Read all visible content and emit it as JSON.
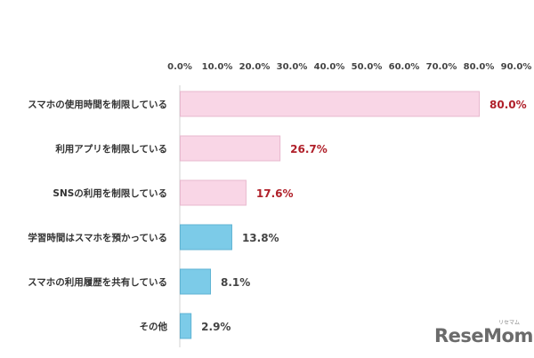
{
  "chart_data": {
    "type": "bar",
    "orientation": "horizontal",
    "categories": [
      "スマホの使用時間を制限している",
      "利用アプリを制限している",
      "SNSの利用を制限している",
      "学習時間はスマホを預かっている",
      "スマホの利用履歴を共有している",
      "その他"
    ],
    "values": [
      80.0,
      26.7,
      17.6,
      13.8,
      8.1,
      2.9
    ],
    "value_labels": [
      "80.0%",
      "26.7%",
      "17.6%",
      "13.8%",
      "8.1%",
      "2.9%"
    ],
    "bar_colors": [
      "#f9d6e6",
      "#f9d6e6",
      "#f9d6e6",
      "#7ccbe8",
      "#7ccbe8",
      "#7ccbe8"
    ],
    "bar_border_colors": [
      "#e8b8ce",
      "#e8b8ce",
      "#e8b8ce",
      "#5fb3d3",
      "#5fb3d3",
      "#5fb3d3"
    ],
    "label_colors": [
      "#b0202a",
      "#b0202a",
      "#b0202a",
      "#444444",
      "#444444",
      "#444444"
    ],
    "x_ticks": [
      "0.0%",
      "10.0%",
      "20.0%",
      "30.0%",
      "40.0%",
      "50.0%",
      "60.0%",
      "70.0%",
      "80.0%",
      "90.0%"
    ],
    "xlim": [
      0,
      90
    ],
    "axis_position": "top",
    "grid": false,
    "title": "",
    "xlabel": "",
    "ylabel": ""
  },
  "logo": {
    "text": "ReseMom",
    "ruby": "リセマム"
  }
}
